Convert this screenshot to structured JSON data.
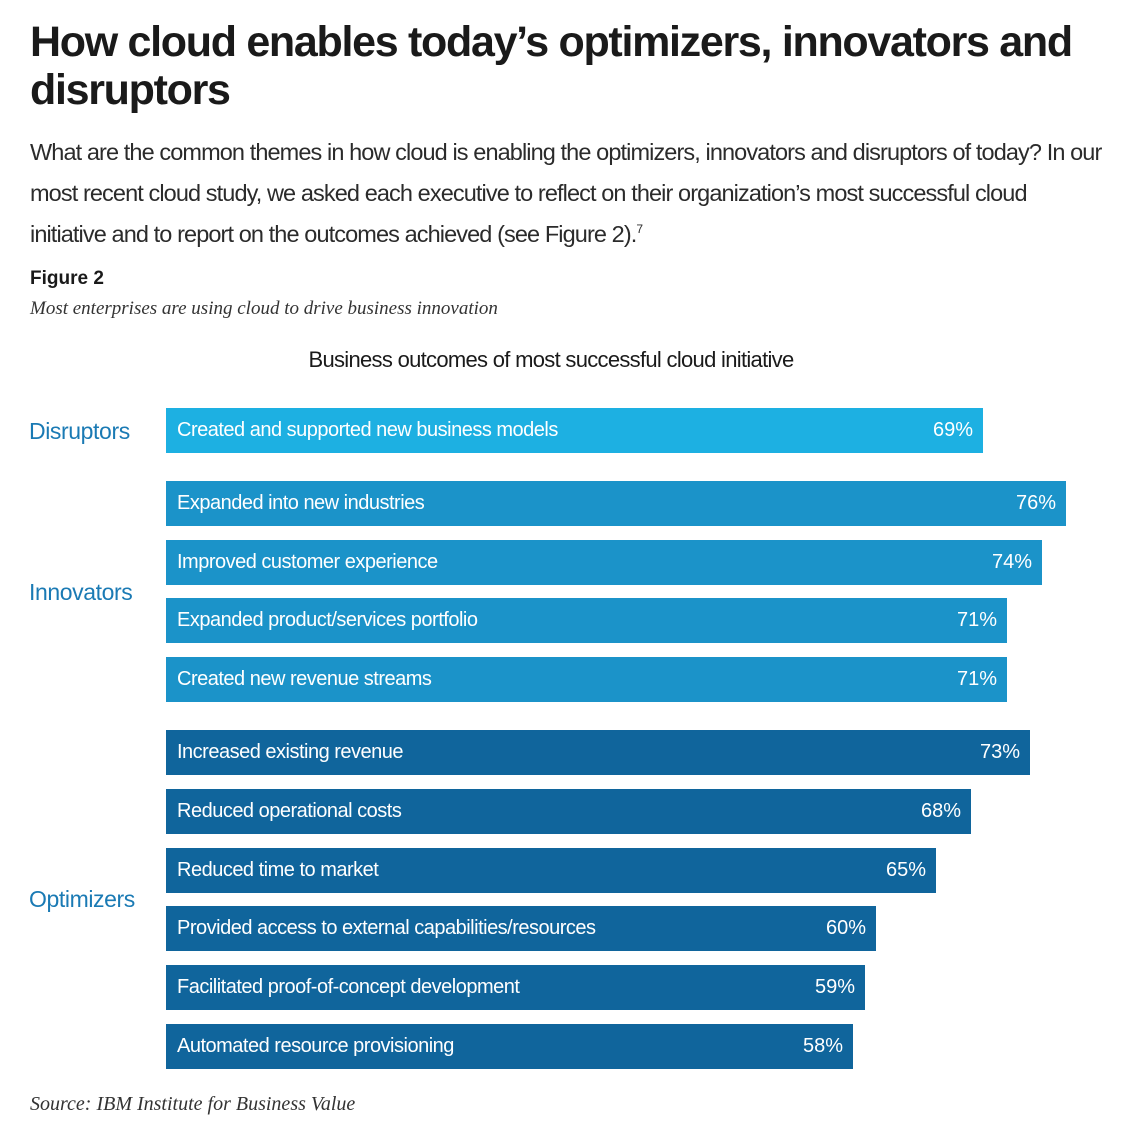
{
  "header": {
    "title": "How cloud enables today’s optimizers, innovators and disruptors",
    "intro": "What are the common themes in how cloud is enabling the optimizers, innovators and disruptors of today? In our most recent cloud study, we asked each executive to reflect on their organization’s most successful cloud initiative and to report on the outcomes achieved (see Figure 2).",
    "footnote_marker": "7"
  },
  "figure": {
    "label": "Figure 2",
    "caption": "Most enterprises are using cloud to drive business innovation"
  },
  "source": "Source: IBM Institute for Business Value",
  "colors": {
    "Disruptors": "#1db0e2",
    "Innovators": "#1b93c9",
    "Optimizers": "#10659c",
    "group_label": "#1a7ab4"
  },
  "chart_data": {
    "type": "bar",
    "orientation": "horizontal",
    "title": "Business outcomes of most successful cloud initiative",
    "unit": "%",
    "xlim": [
      0,
      76
    ],
    "grid": false,
    "groups": [
      {
        "name": "Disruptors",
        "items": [
          {
            "category": "Created and supported new business models",
            "value": 69,
            "label": "69%"
          }
        ]
      },
      {
        "name": "Innovators",
        "items": [
          {
            "category": "Expanded into new industries",
            "value": 76,
            "label": "76%"
          },
          {
            "category": "Improved customer experience",
            "value": 74,
            "label": "74%"
          },
          {
            "category": "Expanded product/services portfolio",
            "value": 71,
            "label": "71%"
          },
          {
            "category": "Created new revenue streams",
            "value": 71,
            "label": "71%"
          }
        ]
      },
      {
        "name": "Optimizers",
        "items": [
          {
            "category": "Increased existing revenue",
            "value": 73,
            "label": "73%"
          },
          {
            "category": "Reduced operational costs",
            "value": 68,
            "label": "68%"
          },
          {
            "category": "Reduced time to market",
            "value": 65,
            "label": "65%"
          },
          {
            "category": "Provided access to external capabilities/resources",
            "value": 60,
            "label": "60%"
          },
          {
            "category": "Facilitated proof-of-concept development",
            "value": 59,
            "label": "59%"
          },
          {
            "category": "Automated resource provisioning",
            "value": 58,
            "label": "58%"
          }
        ]
      }
    ]
  }
}
